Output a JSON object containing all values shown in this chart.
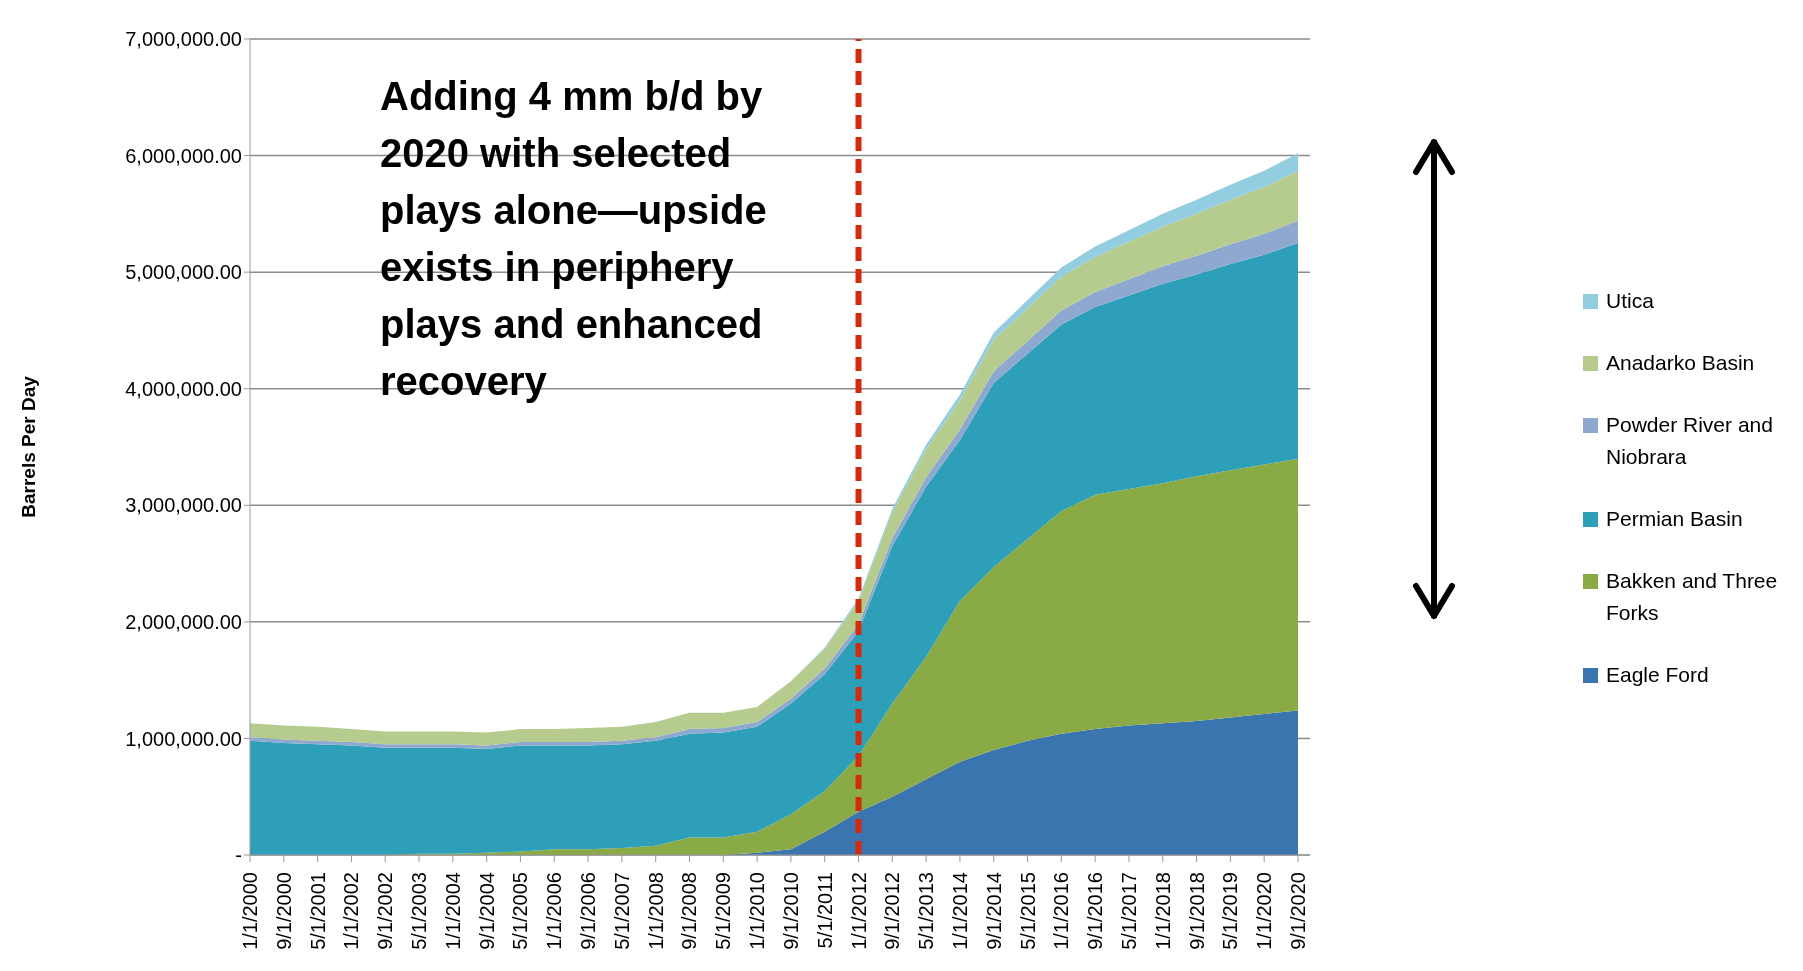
{
  "chart_data": {
    "type": "area",
    "stacked": true,
    "ylabel": "Barrels Per Day",
    "categories": [
      "1/1/2000",
      "9/1/2000",
      "5/1/2001",
      "1/1/2002",
      "9/1/2002",
      "5/1/2003",
      "1/1/2004",
      "9/1/2004",
      "5/1/2005",
      "1/1/2006",
      "9/1/2006",
      "5/1/2007",
      "1/1/2008",
      "9/1/2008",
      "5/1/2009",
      "1/1/2010",
      "9/1/2010",
      "5/1/2011",
      "1/1/2012",
      "9/1/2012",
      "5/1/2013",
      "1/1/2014",
      "9/1/2014",
      "5/1/2015",
      "1/1/2016",
      "9/1/2016",
      "5/1/2017",
      "1/1/2018",
      "9/1/2018",
      "5/1/2019",
      "1/1/2020",
      "9/1/2020"
    ],
    "series": [
      {
        "name": "Eagle Ford",
        "color": "#3a75b0",
        "values": [
          0,
          0,
          0,
          0,
          0,
          0,
          0,
          0,
          0,
          0,
          0,
          0,
          0,
          0,
          0,
          20000,
          50000,
          200000,
          370000,
          500000,
          650000,
          800000,
          900000,
          980000,
          1040000,
          1080000,
          1110000,
          1130000,
          1150000,
          1180000,
          1210000,
          1240000
        ]
      },
      {
        "name": "Bakken and Three Forks",
        "color": "#8aaa45",
        "values": [
          0,
          0,
          0,
          0,
          0,
          10000,
          10000,
          20000,
          30000,
          50000,
          50000,
          60000,
          80000,
          150000,
          150000,
          180000,
          300000,
          350000,
          480000,
          800000,
          1050000,
          1380000,
          1570000,
          1730000,
          1910000,
          2010000,
          2030000,
          2060000,
          2100000,
          2120000,
          2140000,
          2160000
        ]
      },
      {
        "name": "Permian Basin",
        "color": "#2e9fb8",
        "values": [
          980000,
          960000,
          950000,
          940000,
          920000,
          910000,
          910000,
          890000,
          910000,
          890000,
          890000,
          890000,
          900000,
          890000,
          900000,
          900000,
          950000,
          1000000,
          1070000,
          1350000,
          1460000,
          1380000,
          1580000,
          1590000,
          1600000,
          1610000,
          1660000,
          1710000,
          1730000,
          1770000,
          1800000,
          1850000
        ]
      },
      {
        "name": "Powder River and Niobrara",
        "color": "#8fa8d0",
        "values": [
          30000,
          30000,
          30000,
          30000,
          30000,
          30000,
          30000,
          30000,
          30000,
          30000,
          30000,
          30000,
          30000,
          40000,
          40000,
          40000,
          40000,
          50000,
          60000,
          70000,
          80000,
          90000,
          100000,
          110000,
          120000,
          130000,
          140000,
          150000,
          160000,
          170000,
          180000,
          190000
        ]
      },
      {
        "name": "Anadarko Basin",
        "color": "#b5cc8e",
        "values": [
          120000,
          120000,
          120000,
          110000,
          110000,
          110000,
          110000,
          110000,
          110000,
          110000,
          120000,
          120000,
          130000,
          140000,
          130000,
          130000,
          150000,
          170000,
          200000,
          220000,
          240000,
          250000,
          270000,
          280000,
          290000,
          300000,
          320000,
          340000,
          360000,
          380000,
          400000,
          430000
        ]
      },
      {
        "name": "Utica",
        "color": "#92cde0",
        "values": [
          0,
          0,
          0,
          0,
          0,
          0,
          0,
          0,
          0,
          0,
          0,
          0,
          0,
          0,
          0,
          0,
          0,
          10000,
          20000,
          30000,
          40000,
          50000,
          60000,
          70000,
          80000,
          90000,
          100000,
          110000,
          120000,
          130000,
          140000,
          150000
        ]
      }
    ],
    "ylim": [
      0,
      7000000
    ],
    "yticks": [
      {
        "value": 0,
        "label": "-"
      },
      {
        "value": 1000000,
        "label": "1,000,000.00"
      },
      {
        "value": 2000000,
        "label": "2,000,000.00"
      },
      {
        "value": 3000000,
        "label": "3,000,000.00"
      },
      {
        "value": 4000000,
        "label": "4,000,000.00"
      },
      {
        "value": 5000000,
        "label": "5,000,000.00"
      },
      {
        "value": 6000000,
        "label": "6,000,000.00"
      },
      {
        "value": 7000000,
        "label": "7,000,000.00"
      }
    ],
    "grid": "y",
    "legend": "right",
    "ref_lines": [
      {
        "axis": "x",
        "value": "1/1/2012",
        "color": "#d42a0e",
        "line_style": "dashed"
      }
    ],
    "annotations": [
      "Adding 4 mm b/d by 2020 with selected plays alone—upside exists in periphery plays and enhanced recovery"
    ]
  }
}
